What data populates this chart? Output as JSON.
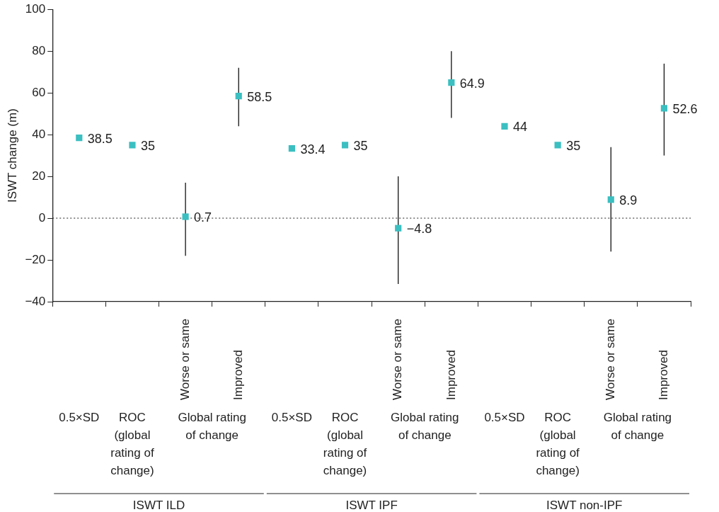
{
  "chart_data": {
    "type": "scatter",
    "categories": [
      null,
      null,
      "Worse or same",
      "Improved",
      null,
      null,
      "Worse or same",
      "Improved",
      null,
      null,
      "Worse or same",
      "Improved"
    ],
    "series": [
      {
        "color": "#3bbfc1",
        "values": [
          38.5,
          35,
          0.7,
          58.5,
          33.4,
          35,
          -4.8,
          64.9,
          44,
          35,
          8.9,
          52.6
        ],
        "errors": [
          null,
          null,
          [
            -18,
            17
          ],
          [
            44,
            72
          ],
          null,
          null,
          [
            -31.5,
            20
          ],
          [
            48,
            80
          ],
          null,
          null,
          [
            -16,
            34
          ],
          [
            30,
            74
          ]
        ],
        "value_labels": [
          "38.5",
          "35",
          "0.7",
          "58.5",
          "33.4",
          "35",
          "−4.8",
          "64.9",
          "44",
          "35",
          "8.9",
          "52.6"
        ]
      }
    ],
    "ylabel": "ISWT change (m)",
    "ylim": [
      -40,
      100
    ],
    "yticks": [
      {
        "value": -40,
        "label": "−40"
      },
      {
        "value": -20,
        "label": "−20"
      },
      0,
      20,
      40,
      60,
      80,
      100
    ],
    "ref_lines": [
      {
        "axis": "y",
        "value": 0,
        "line_style": "dotted",
        "color": "#222222"
      }
    ],
    "annotations": [
      "0.5×SD",
      "ROC (global rating of change)",
      "Global rating of change",
      "0.5×SD",
      "ROC (global rating of change)",
      "Global rating of change",
      "0.5×SD",
      "ROC (global rating of change)",
      "Global rating of change",
      "ISWT ILD",
      "ISWT IPF",
      "ISWT non-IPF"
    ],
    "marker": "square",
    "grid": false,
    "legend": false
  }
}
